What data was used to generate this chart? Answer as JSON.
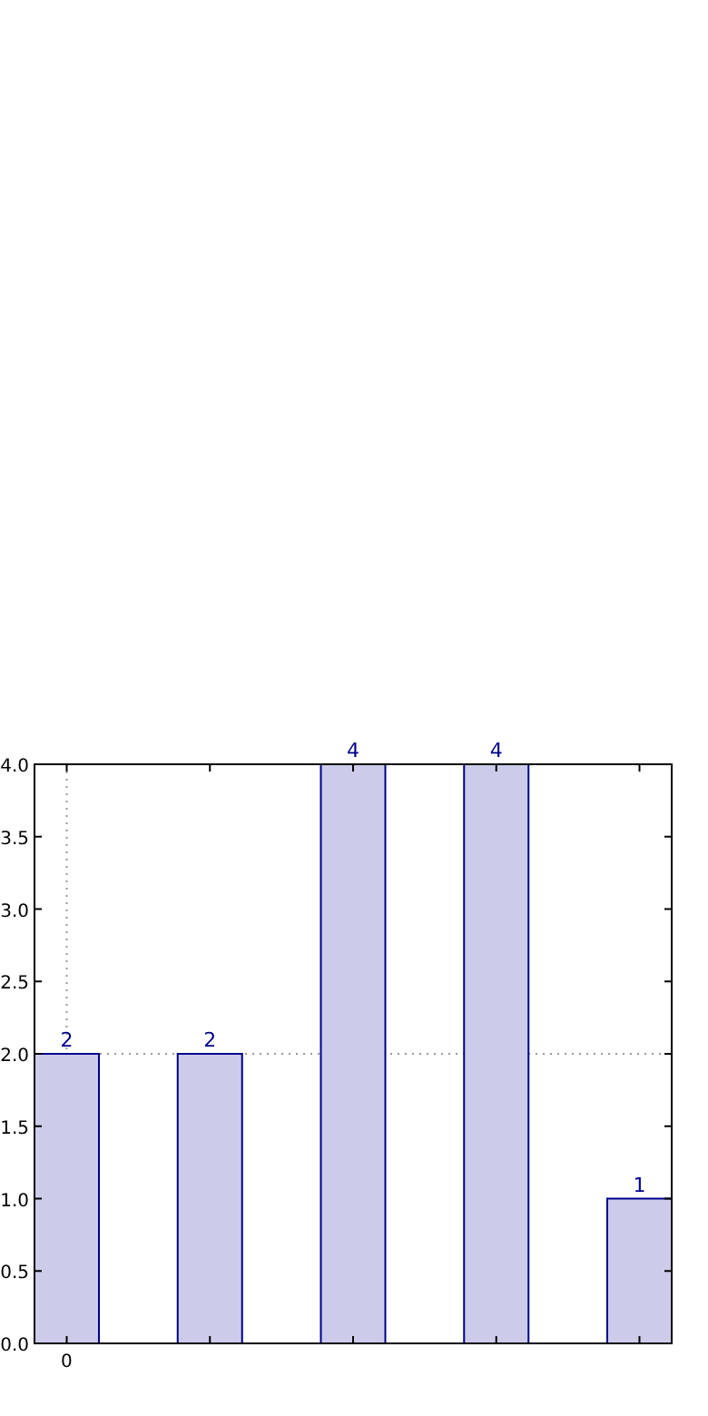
{
  "chart_data": {
    "type": "bar",
    "categories": [
      "0",
      null,
      null,
      null,
      null
    ],
    "values": [
      2,
      2,
      4,
      4,
      1
    ],
    "color": "#ccccea",
    "ylim": [
      0,
      4
    ],
    "yticks": [
      {
        "value": 0,
        "label": "0.0"
      },
      {
        "value": 0.5,
        "label": "0.5"
      },
      {
        "value": 1,
        "label": "1.0"
      },
      {
        "value": 1.5,
        "label": "1.5"
      },
      {
        "value": 2,
        "label": "2.0"
      },
      {
        "value": 2.5,
        "label": "2.5"
      },
      {
        "value": 3,
        "label": "3.0"
      },
      {
        "value": 3.5,
        "label": "3.5"
      },
      {
        "value": 4,
        "label": "4.0"
      }
    ],
    "data_labels": true,
    "ref_lines": [
      {
        "axis": "x",
        "value": "0",
        "line_style": "dotted"
      },
      {
        "axis": "y",
        "value": 2,
        "line_style": "dotted"
      }
    ]
  }
}
